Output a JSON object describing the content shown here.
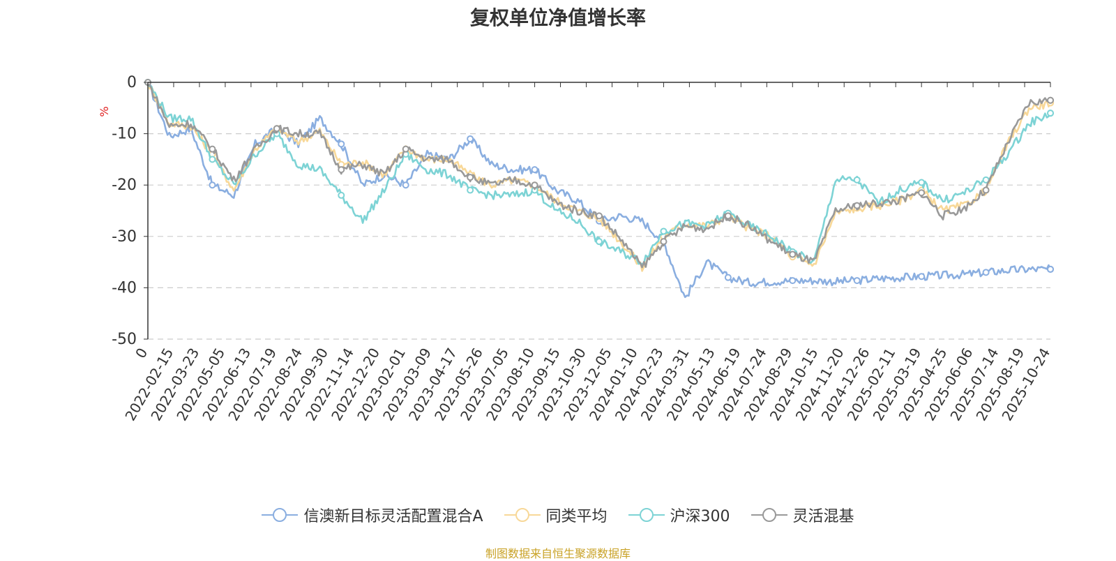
{
  "chart_data": {
    "type": "line",
    "title": "复权单位净值增长率",
    "ylabel": "%",
    "ylim": [
      -50,
      0
    ],
    "yticks": [
      0,
      -10,
      -20,
      -30,
      -40,
      -50
    ],
    "xlabel": "",
    "x_ticks": [
      "0",
      "2022-02-15",
      "2022-03-23",
      "2022-05-05",
      "2022-06-13",
      "2022-07-19",
      "2022-08-24",
      "2022-09-30",
      "2022-11-14",
      "2022-12-20",
      "2023-02-01",
      "2023-03-09",
      "2023-04-17",
      "2023-05-26",
      "2023-07-05",
      "2023-08-10",
      "2023-09-15",
      "2023-10-30",
      "2023-12-05",
      "2024-01-10",
      "2024-02-23",
      "2024-03-31",
      "2024-05-13",
      "2024-06-19",
      "2024-07-24",
      "2024-08-29",
      "2024-10-15",
      "2024-11-20",
      "2024-12-26",
      "2025-02-11",
      "2025-03-19",
      "2025-04-25",
      "2025-06-06",
      "2025-07-14",
      "2025-08-19",
      "2025-10-24"
    ],
    "series": [
      {
        "name": "信澳新目标灵活配置混合A",
        "color": "#8aaee0",
        "values": [
          0,
          -10.5,
          -9,
          -20,
          -22,
          -12,
          -9,
          -12,
          -7,
          -12,
          -20,
          -18,
          -20,
          -14,
          -15,
          -11,
          -16,
          -17,
          -17,
          -21,
          -23,
          -27,
          -26,
          -27,
          -31,
          -42,
          -35,
          -38,
          -39,
          -38.8,
          -38.6,
          -38.6,
          -38.8,
          -38.6,
          -38.2,
          -38,
          -37.8,
          -37.6,
          -37.4,
          -37,
          -36.6,
          -36.4,
          -36.4
        ]
      },
      {
        "name": "同类平均",
        "color": "#f8d898",
        "values": [
          0,
          -8,
          -8.5,
          -14,
          -21,
          -13,
          -9,
          -11.5,
          -9.5,
          -16,
          -15.5,
          -18,
          -13,
          -15,
          -15,
          -18,
          -20,
          -19,
          -20,
          -23,
          -25,
          -26.5,
          -31,
          -36,
          -30,
          -27.5,
          -28,
          -26,
          -28.5,
          -30,
          -34,
          -35.5,
          -25.5,
          -24.5,
          -24,
          -23,
          -21,
          -25,
          -24,
          -21,
          -12,
          -5,
          -4
        ]
      },
      {
        "name": "沪深300",
        "color": "#7dd3d5",
        "values": [
          0,
          -7,
          -7,
          -15,
          -20,
          -14,
          -10,
          -16,
          -17,
          -22,
          -27,
          -21,
          -14,
          -17,
          -18,
          -21,
          -22,
          -22,
          -21,
          -25,
          -27,
          -31,
          -33,
          -35,
          -29,
          -27.5,
          -28,
          -25.5,
          -28,
          -30,
          -33,
          -35,
          -19,
          -19,
          -23.5,
          -21,
          -19.5,
          -23,
          -21.5,
          -19,
          -14,
          -8,
          -6
        ]
      },
      {
        "name": "灵活混基",
        "color": "#999999",
        "values": [
          0,
          -8.5,
          -8,
          -13,
          -19,
          -13,
          -9,
          -10,
          -10,
          -17,
          -16,
          -18,
          -13,
          -15,
          -15,
          -18.5,
          -20,
          -19,
          -20,
          -23.5,
          -25,
          -26,
          -30.5,
          -36,
          -31,
          -28,
          -28.5,
          -26,
          -28,
          -31,
          -33.5,
          -35,
          -25,
          -24,
          -23.5,
          -23,
          -21.5,
          -26,
          -24.5,
          -21,
          -12,
          -4,
          -3.5
        ]
      }
    ]
  },
  "legend": {
    "items": [
      {
        "label": "信澳新目标灵活配置混合A",
        "color": "#8aaee0"
      },
      {
        "label": "同类平均",
        "color": "#f8d898"
      },
      {
        "label": "沪深300",
        "color": "#7dd3d5"
      },
      {
        "label": "灵活混基",
        "color": "#999999"
      }
    ]
  },
  "source_text": "制图数据来自恒生聚源数据库",
  "colors": {
    "axis": "#333333",
    "grid": "#cccccc",
    "unit_label": "#e02020",
    "source": "#c9a227"
  }
}
